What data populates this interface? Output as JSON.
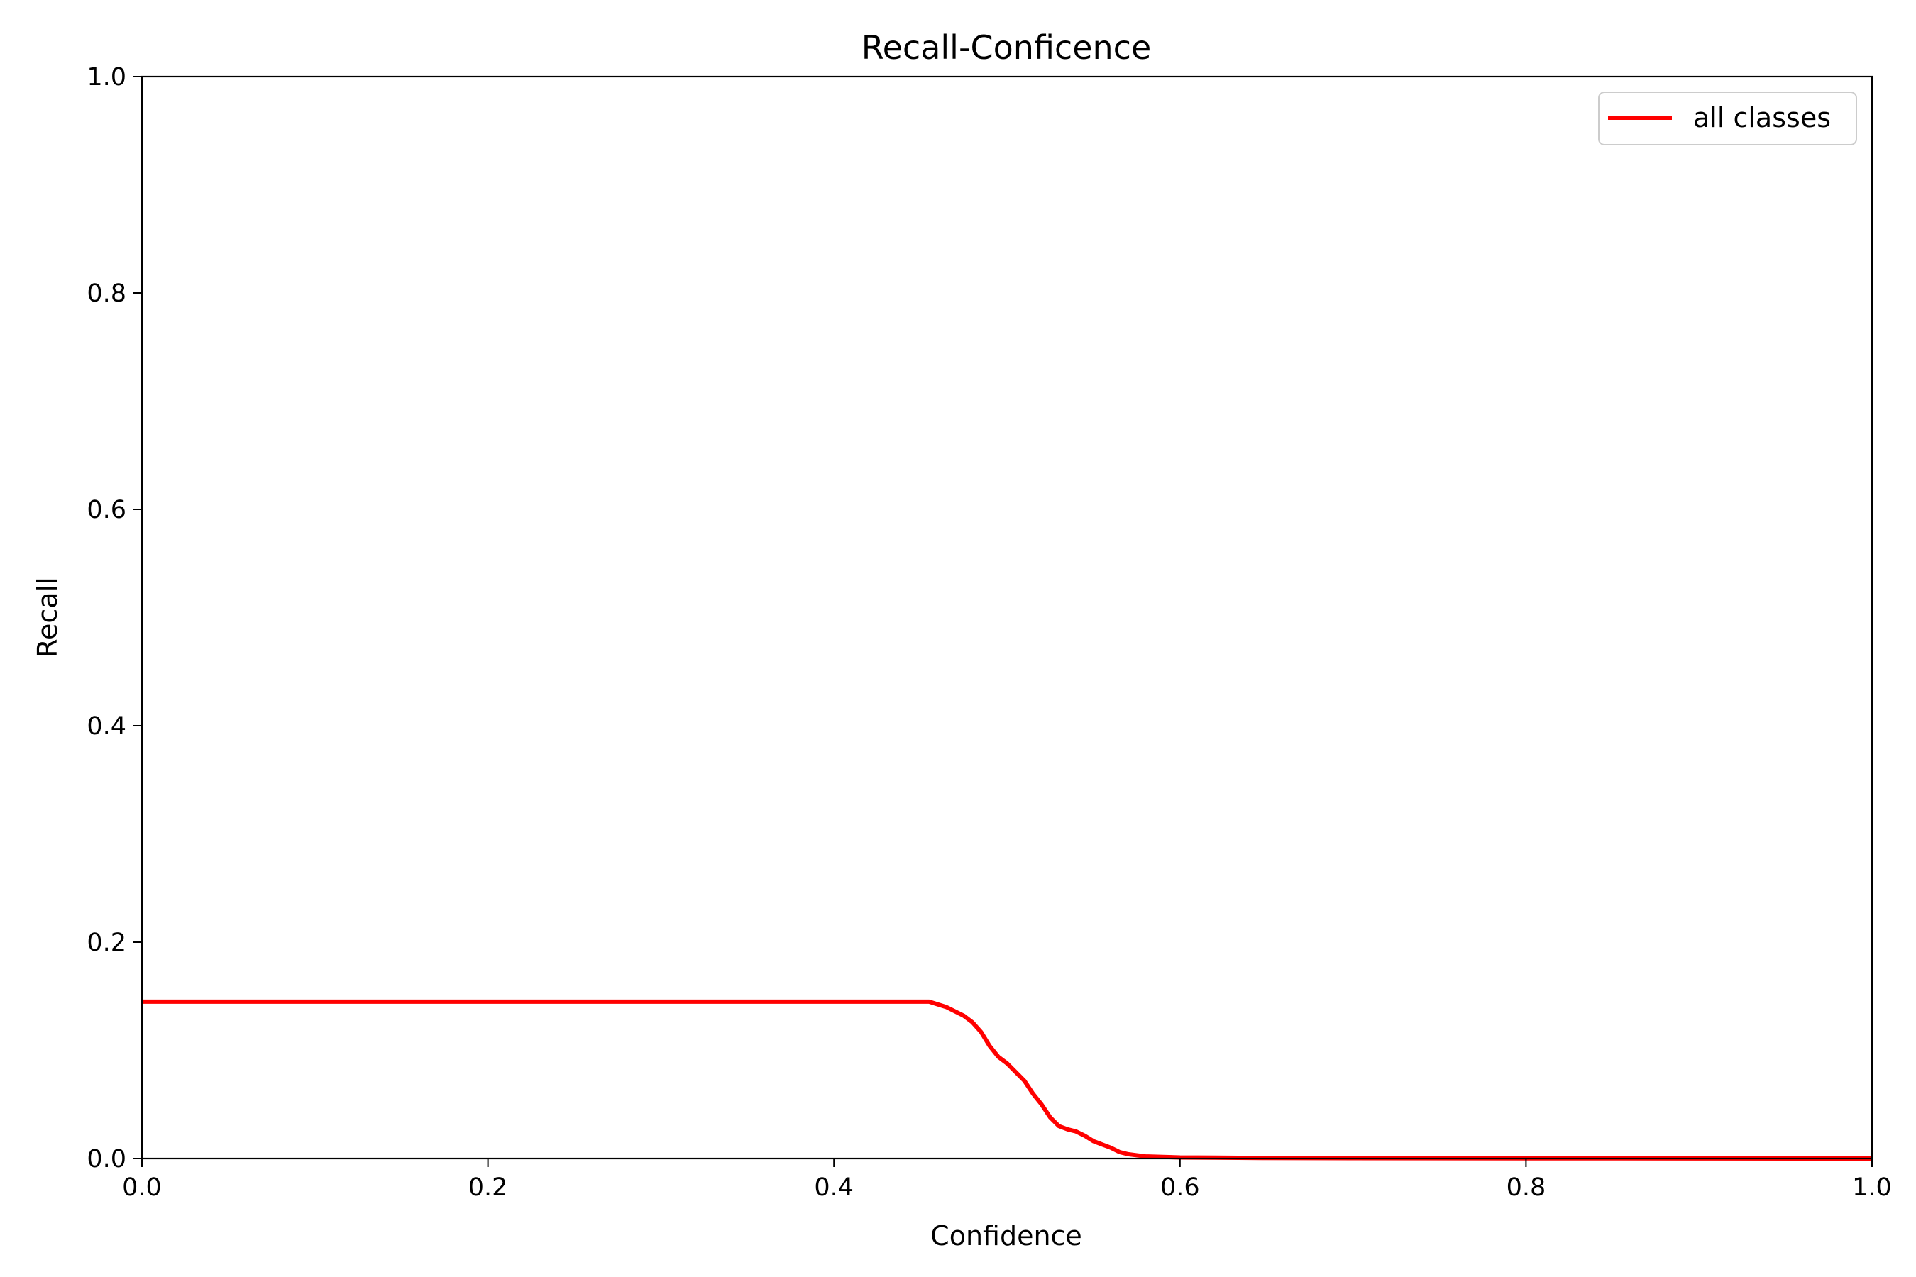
{
  "chart_data": {
    "type": "line",
    "title": "Recall-Conficence",
    "xlabel": "Confidence",
    "ylabel": "Recall",
    "xlim": [
      0,
      1
    ],
    "ylim": [
      0,
      1
    ],
    "xticks": [
      "0.0",
      "0.2",
      "0.4",
      "0.6",
      "0.8",
      "1.0"
    ],
    "yticks": [
      "0.0",
      "0.2",
      "0.4",
      "0.6",
      "0.8",
      "1.0"
    ],
    "grid": false,
    "legend_position": "top-right",
    "series": [
      {
        "name": "all classes",
        "color": "#ff0000",
        "x": [
          0.0,
          0.05,
          0.1,
          0.15,
          0.2,
          0.25,
          0.3,
          0.35,
          0.4,
          0.44,
          0.455,
          0.465,
          0.475,
          0.48,
          0.485,
          0.49,
          0.495,
          0.5,
          0.505,
          0.51,
          0.515,
          0.52,
          0.525,
          0.53,
          0.535,
          0.54,
          0.545,
          0.55,
          0.555,
          0.56,
          0.565,
          0.57,
          0.575,
          0.58,
          0.59,
          0.6,
          0.62,
          0.65,
          0.7,
          0.8,
          0.9,
          1.0
        ],
        "y": [
          0.145,
          0.145,
          0.145,
          0.145,
          0.145,
          0.145,
          0.145,
          0.145,
          0.145,
          0.145,
          0.145,
          0.14,
          0.132,
          0.126,
          0.117,
          0.104,
          0.094,
          0.088,
          0.08,
          0.072,
          0.06,
          0.05,
          0.038,
          0.03,
          0.027,
          0.025,
          0.021,
          0.016,
          0.013,
          0.01,
          0.006,
          0.004,
          0.003,
          0.002,
          0.0015,
          0.001,
          0.0008,
          0.0005,
          0.0003,
          0.0002,
          0.0001,
          0.0
        ]
      }
    ]
  }
}
